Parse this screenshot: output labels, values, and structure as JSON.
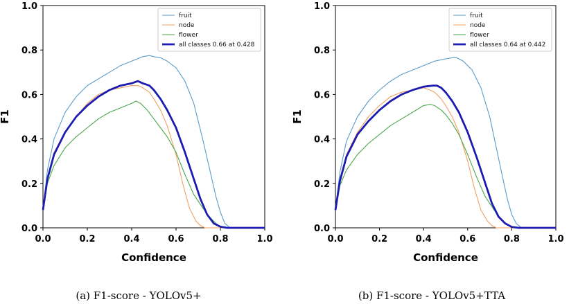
{
  "chart_data": [
    {
      "type": "line",
      "xlabel": "Confidence",
      "ylabel": "F1",
      "xlim": [
        0,
        1
      ],
      "ylim": [
        0,
        1
      ],
      "x_ticks": [
        "0.0",
        "0.2",
        "0.4",
        "0.6",
        "0.8",
        "1.0"
      ],
      "y_ticks": [
        "0.0",
        "0.2",
        "0.4",
        "0.6",
        "0.8",
        "1.0"
      ],
      "legend_position": "top-right",
      "grid": false,
      "caption": "(a) F1-score - YOLOv5+",
      "series": [
        {
          "name": "fruit",
          "color": "#5a9bc9",
          "bold": false,
          "x": [
            0,
            0.02,
            0.05,
            0.1,
            0.15,
            0.2,
            0.25,
            0.3,
            0.35,
            0.4,
            0.45,
            0.48,
            0.5,
            0.53,
            0.56,
            0.6,
            0.64,
            0.68,
            0.72,
            0.75,
            0.78,
            0.8,
            0.82,
            0.84,
            0.86,
            0.9,
            1.0
          ],
          "y": [
            0.08,
            0.26,
            0.4,
            0.52,
            0.59,
            0.64,
            0.67,
            0.7,
            0.73,
            0.75,
            0.77,
            0.775,
            0.77,
            0.765,
            0.75,
            0.72,
            0.66,
            0.56,
            0.4,
            0.27,
            0.14,
            0.07,
            0.02,
            0.003,
            0.0,
            0.0,
            0.0
          ]
        },
        {
          "name": "node",
          "color": "#f0a060",
          "bold": false,
          "x": [
            0,
            0.02,
            0.05,
            0.1,
            0.15,
            0.2,
            0.25,
            0.3,
            0.35,
            0.4,
            0.43,
            0.45,
            0.48,
            0.5,
            0.53,
            0.56,
            0.6,
            0.63,
            0.66,
            0.69,
            0.71,
            0.73,
            0.75,
            0.8,
            1.0
          ],
          "y": [
            0.08,
            0.22,
            0.34,
            0.43,
            0.5,
            0.56,
            0.6,
            0.62,
            0.63,
            0.64,
            0.64,
            0.63,
            0.61,
            0.58,
            0.53,
            0.46,
            0.33,
            0.2,
            0.09,
            0.03,
            0.01,
            0.0,
            0.0,
            0.0,
            0.0
          ]
        },
        {
          "name": "flower",
          "color": "#4aa54a",
          "bold": false,
          "x": [
            0,
            0.02,
            0.05,
            0.1,
            0.15,
            0.2,
            0.25,
            0.3,
            0.35,
            0.4,
            0.42,
            0.44,
            0.47,
            0.5,
            0.53,
            0.56,
            0.6,
            0.64,
            0.68,
            0.72,
            0.75,
            0.78,
            0.8,
            0.82,
            0.85,
            1.0
          ],
          "y": [
            0.08,
            0.2,
            0.28,
            0.36,
            0.41,
            0.45,
            0.49,
            0.52,
            0.54,
            0.56,
            0.57,
            0.56,
            0.53,
            0.49,
            0.45,
            0.41,
            0.34,
            0.24,
            0.15,
            0.09,
            0.05,
            0.02,
            0.005,
            0.0,
            0.0,
            0.0
          ]
        },
        {
          "name": "all classes 0.66 at 0.428",
          "color": "#1c1cb0",
          "bold": true,
          "x": [
            0,
            0.02,
            0.05,
            0.1,
            0.15,
            0.2,
            0.25,
            0.3,
            0.35,
            0.4,
            0.428,
            0.45,
            0.48,
            0.5,
            0.53,
            0.56,
            0.6,
            0.64,
            0.68,
            0.71,
            0.74,
            0.77,
            0.8,
            0.83,
            0.85,
            0.9,
            1.0
          ],
          "y": [
            0.08,
            0.22,
            0.33,
            0.43,
            0.5,
            0.55,
            0.59,
            0.62,
            0.64,
            0.65,
            0.66,
            0.65,
            0.64,
            0.62,
            0.58,
            0.53,
            0.45,
            0.34,
            0.22,
            0.13,
            0.06,
            0.02,
            0.005,
            0.0,
            0.0,
            0.0,
            0.0
          ]
        }
      ]
    },
    {
      "type": "line",
      "xlabel": "Confidence",
      "ylabel": "F1",
      "xlim": [
        0,
        1
      ],
      "ylim": [
        0,
        1
      ],
      "x_ticks": [
        "0.0",
        "0.2",
        "0.4",
        "0.6",
        "0.8",
        "1.0"
      ],
      "y_ticks": [
        "0.0",
        "0.2",
        "0.4",
        "0.6",
        "0.8",
        "1.0"
      ],
      "legend_position": "top-right",
      "grid": false,
      "caption": "(b) F1-score - YOLOv5+TTA",
      "series": [
        {
          "name": "fruit",
          "color": "#5a9bc9",
          "bold": false,
          "x": [
            0,
            0.02,
            0.05,
            0.1,
            0.15,
            0.2,
            0.25,
            0.3,
            0.35,
            0.4,
            0.45,
            0.5,
            0.53,
            0.55,
            0.58,
            0.62,
            0.66,
            0.7,
            0.73,
            0.76,
            0.78,
            0.8,
            0.82,
            0.84,
            0.86,
            0.9,
            1.0
          ],
          "y": [
            0.08,
            0.25,
            0.39,
            0.5,
            0.57,
            0.62,
            0.66,
            0.69,
            0.71,
            0.73,
            0.75,
            0.76,
            0.765,
            0.765,
            0.75,
            0.71,
            0.63,
            0.5,
            0.36,
            0.22,
            0.13,
            0.06,
            0.02,
            0.003,
            0.0,
            0.0,
            0.0
          ]
        },
        {
          "name": "node",
          "color": "#f0a060",
          "bold": false,
          "x": [
            0,
            0.02,
            0.05,
            0.1,
            0.15,
            0.2,
            0.25,
            0.3,
            0.35,
            0.4,
            0.43,
            0.45,
            0.48,
            0.5,
            0.53,
            0.56,
            0.6,
            0.63,
            0.66,
            0.69,
            0.71,
            0.73,
            0.75,
            0.8,
            1.0
          ],
          "y": [
            0.08,
            0.22,
            0.33,
            0.43,
            0.5,
            0.55,
            0.59,
            0.61,
            0.62,
            0.63,
            0.62,
            0.61,
            0.58,
            0.55,
            0.5,
            0.43,
            0.3,
            0.18,
            0.08,
            0.03,
            0.01,
            0.0,
            0.0,
            0.0,
            0.0
          ]
        },
        {
          "name": "flower",
          "color": "#4aa54a",
          "bold": false,
          "x": [
            0,
            0.02,
            0.05,
            0.1,
            0.15,
            0.2,
            0.25,
            0.3,
            0.35,
            0.4,
            0.43,
            0.45,
            0.48,
            0.5,
            0.53,
            0.56,
            0.6,
            0.64,
            0.68,
            0.72,
            0.75,
            0.78,
            0.8,
            0.82,
            0.85,
            1.0
          ],
          "y": [
            0.08,
            0.19,
            0.26,
            0.33,
            0.38,
            0.42,
            0.46,
            0.49,
            0.52,
            0.55,
            0.555,
            0.55,
            0.53,
            0.51,
            0.47,
            0.42,
            0.33,
            0.23,
            0.14,
            0.08,
            0.04,
            0.015,
            0.004,
            0.0,
            0.0,
            0.0
          ]
        },
        {
          "name": "all classes 0.64 at 0.442",
          "color": "#1c1cb0",
          "bold": true,
          "x": [
            0,
            0.02,
            0.05,
            0.1,
            0.15,
            0.2,
            0.25,
            0.3,
            0.35,
            0.4,
            0.442,
            0.46,
            0.48,
            0.5,
            0.53,
            0.56,
            0.6,
            0.64,
            0.68,
            0.71,
            0.74,
            0.77,
            0.8,
            0.83,
            0.85,
            0.9,
            1.0
          ],
          "y": [
            0.08,
            0.21,
            0.32,
            0.42,
            0.48,
            0.53,
            0.57,
            0.6,
            0.62,
            0.635,
            0.64,
            0.64,
            0.63,
            0.61,
            0.57,
            0.52,
            0.43,
            0.32,
            0.2,
            0.11,
            0.05,
            0.02,
            0.004,
            0.0,
            0.0,
            0.0,
            0.0
          ]
        }
      ]
    }
  ]
}
